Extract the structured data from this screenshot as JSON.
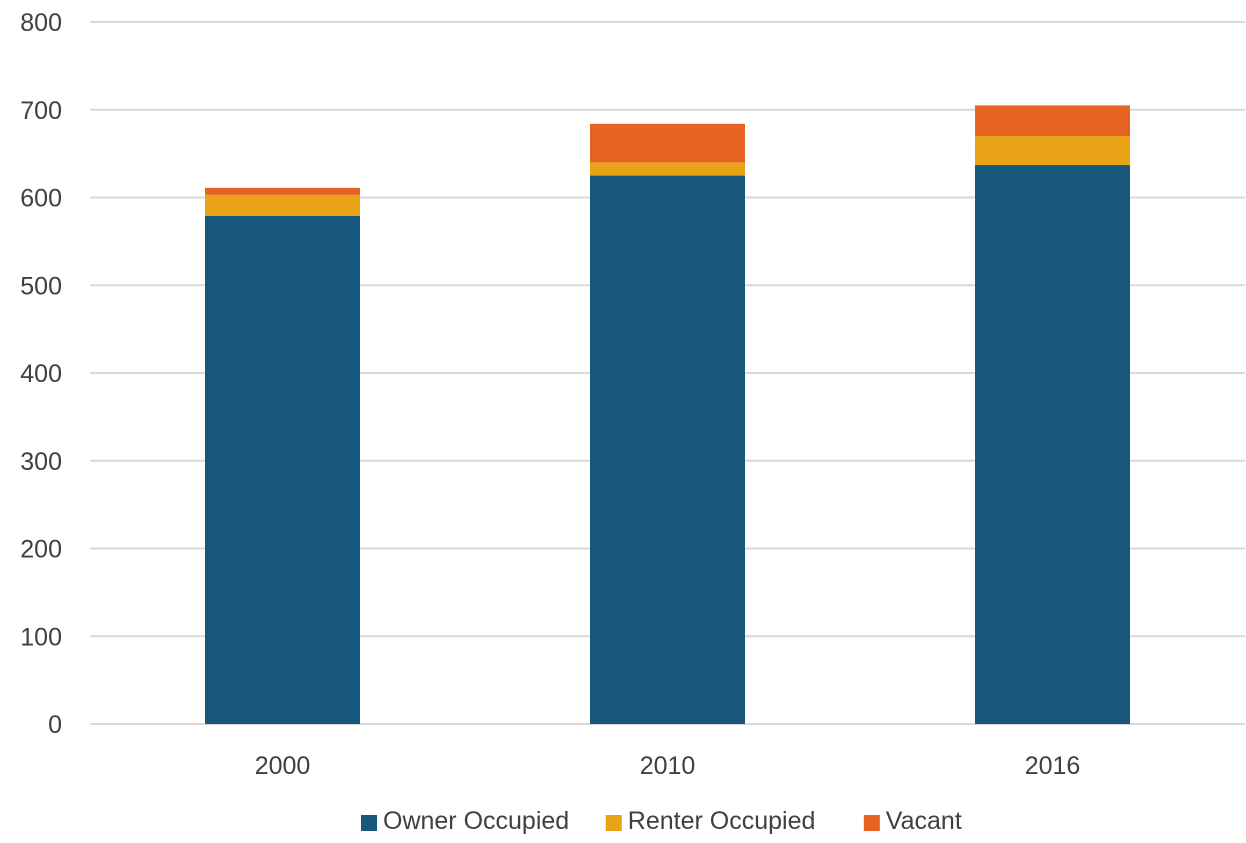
{
  "chart_data": {
    "type": "bar",
    "stacked": true,
    "categories": [
      "2000",
      "2010",
      "2016"
    ],
    "series": [
      {
        "name": "Owner Occupied",
        "values": [
          579,
          625,
          637
        ],
        "color": "#17577E"
      },
      {
        "name": "Renter Occupied",
        "values": [
          24,
          15,
          33
        ],
        "color": "#E8A317"
      },
      {
        "name": "Vacant",
        "values": [
          8,
          44,
          35
        ],
        "color": "#E66321"
      }
    ],
    "ylim": [
      0,
      800
    ],
    "yticks": [
      "0",
      "100",
      "200",
      "300",
      "400",
      "500",
      "600",
      "700",
      "800"
    ],
    "grid": true,
    "legend_position": "bottom",
    "gridline_color": "#D9D9D9"
  }
}
